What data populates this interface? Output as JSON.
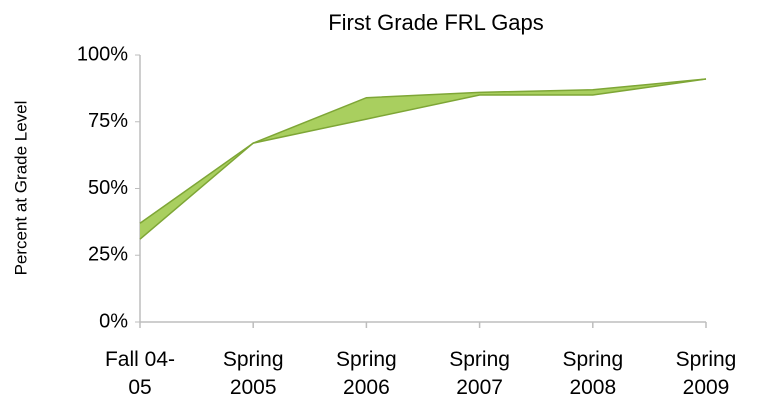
{
  "chart_data": {
    "type": "band",
    "title": "First Grade FRL Gaps",
    "y_label": "Percent at Grade Level",
    "categories": [
      "Fall 04-05",
      "Spring 2005",
      "Spring 2006",
      "Spring 2007",
      "Spring 2008",
      "Spring 2009"
    ],
    "series": [
      {
        "color": "#7ea636",
        "values": [
          37,
          67,
          84,
          86,
          87,
          91
        ]
      },
      {
        "color": "#7ea636",
        "values": [
          31,
          67,
          76,
          85,
          85,
          91
        ]
      }
    ],
    "fill_color": "#a9cf5f",
    "ylim": [
      0,
      100
    ],
    "yticks": [
      {
        "value": 0,
        "label": "0%"
      },
      {
        "value": 25,
        "label": "25%"
      },
      {
        "value": 50,
        "label": "50%"
      },
      {
        "value": 75,
        "label": "75%"
      },
      {
        "value": 100,
        "label": "100%"
      }
    ],
    "grid": false
  }
}
